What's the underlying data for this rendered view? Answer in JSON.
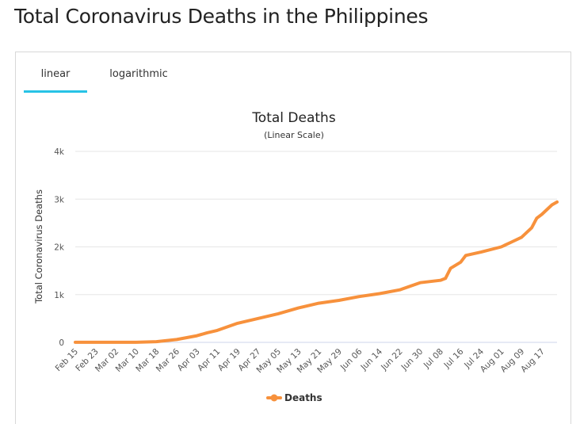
{
  "page": {
    "title": "Total Coronavirus Deaths in the Philippines"
  },
  "tabs": [
    {
      "label": "linear",
      "active": true
    },
    {
      "label": "logarithmic",
      "active": false
    }
  ],
  "colors": {
    "series": "#f7913c",
    "tab_active": "#27c3e6",
    "grid": "#e6e6e6"
  },
  "chart_data": {
    "type": "line",
    "title": "Total Deaths",
    "subtitle": "(Linear Scale)",
    "ylabel": "Total Coronavirus Deaths",
    "xlabel": "",
    "ylim": [
      0,
      4000
    ],
    "yticks": [
      0,
      1000,
      2000,
      3000,
      4000
    ],
    "ytick_labels": [
      "0",
      "1k",
      "2k",
      "3k",
      "4k"
    ],
    "x_tick_labels": [
      "Feb 15",
      "Feb 23",
      "Mar 02",
      "Mar 10",
      "Mar 18",
      "Mar 26",
      "Apr 03",
      "Apr 11",
      "Apr 19",
      "Apr 27",
      "May 05",
      "May 13",
      "May 21",
      "May 29",
      "Jun 06",
      "Jun 14",
      "Jun 22",
      "Jun 30",
      "Jul 08",
      "Jul 16",
      "Jul 24",
      "Aug 01",
      "Aug 09",
      "Aug 17"
    ],
    "legend": {
      "position": "bottom-center",
      "entries": [
        "Deaths"
      ]
    },
    "grid": true,
    "series": [
      {
        "name": "Deaths",
        "x": [
          "Feb 15",
          "Mar 10",
          "Mar 18",
          "Mar 26",
          "Apr 03",
          "Apr 07",
          "Apr 11",
          "Apr 19",
          "Apr 27",
          "May 05",
          "May 13",
          "May 21",
          "May 29",
          "Jun 06",
          "Jun 14",
          "Jun 22",
          "Jun 30",
          "Jul 08",
          "Jul 10",
          "Jul 12",
          "Jul 16",
          "Jul 18",
          "Jul 24",
          "Aug 01",
          "Aug 05",
          "Aug 09",
          "Aug 11",
          "Aug 13",
          "Aug 15",
          "Aug 17",
          "Aug 19",
          "Aug 21",
          "Aug 23"
        ],
        "values": [
          1,
          1,
          15,
          60,
          140,
          200,
          250,
          400,
          500,
          600,
          720,
          820,
          880,
          960,
          1020,
          1100,
          1250,
          1300,
          1340,
          1550,
          1680,
          1820,
          1890,
          2000,
          2100,
          2200,
          2300,
          2400,
          2600,
          2680,
          2780,
          2880,
          2940
        ]
      }
    ]
  },
  "icons": {
    "legend_marker": "orange-line-dot-icon"
  }
}
